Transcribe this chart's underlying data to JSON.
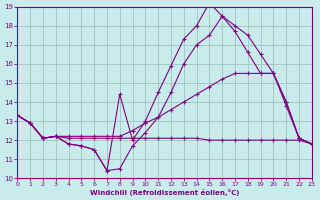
{
  "xlabel": "Windchill (Refroidissement éolien,°C)",
  "xlim": [
    0,
    23
  ],
  "ylim": [
    10,
    19
  ],
  "yticks": [
    10,
    11,
    12,
    13,
    14,
    15,
    16,
    17,
    18,
    19
  ],
  "xticks": [
    0,
    1,
    2,
    3,
    4,
    5,
    6,
    7,
    8,
    9,
    10,
    11,
    12,
    13,
    14,
    15,
    16,
    17,
    18,
    19,
    20,
    21,
    22,
    23
  ],
  "background_color": "#c8ecec",
  "grid_color": "#b0d0d0",
  "line_color": "#800080",
  "lines": [
    [
      13.3,
      12.9,
      12.1,
      12.2,
      12.1,
      12.1,
      12.1,
      12.1,
      12.1,
      12.1,
      12.1,
      12.1,
      12.1,
      12.1,
      12.1,
      12.0,
      12.0,
      12.0,
      12.0,
      12.0,
      12.0,
      12.0,
      12.0,
      11.8
    ],
    [
      13.3,
      12.9,
      12.1,
      12.2,
      12.2,
      12.2,
      12.2,
      12.2,
      12.2,
      12.5,
      12.9,
      13.2,
      13.6,
      14.0,
      14.4,
      14.8,
      15.2,
      15.5,
      15.5,
      15.5,
      15.5,
      13.8,
      12.1,
      11.8
    ],
    [
      13.3,
      12.9,
      12.1,
      12.2,
      11.8,
      11.7,
      11.5,
      10.4,
      10.5,
      11.7,
      12.4,
      13.2,
      14.5,
      16.0,
      17.0,
      17.5,
      18.5,
      18.0,
      17.5,
      16.5,
      15.5,
      14.0,
      12.1,
      11.8
    ],
    [
      13.3,
      12.9,
      12.1,
      12.2,
      11.8,
      11.7,
      11.5,
      10.4,
      14.4,
      12.0,
      13.0,
      14.5,
      15.9,
      17.3,
      18.0,
      19.2,
      18.5,
      17.7,
      16.6,
      15.5,
      15.5,
      14.0,
      12.1,
      11.8
    ]
  ]
}
